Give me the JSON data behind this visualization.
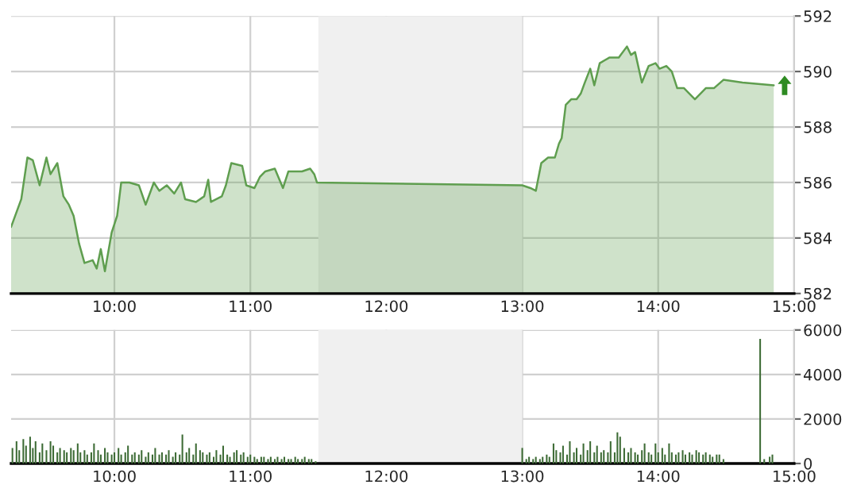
{
  "chart_data": [
    {
      "type": "area",
      "xlim": [
        9.24,
        15
      ],
      "ylim": [
        582,
        592
      ],
      "yticks": [
        582,
        584,
        586,
        588,
        590,
        592
      ],
      "xticks": [
        {
          "value": 10,
          "label": "10:00"
        },
        {
          "value": 11,
          "label": "11:00"
        },
        {
          "value": 12,
          "label": "12:00"
        },
        {
          "value": 13,
          "label": "13:00"
        },
        {
          "value": 14,
          "label": "14:00"
        },
        {
          "value": 15,
          "label": "15:00"
        }
      ],
      "grid": true,
      "bands": [
        {
          "axis": "x",
          "from": 11.5,
          "to": 13,
          "color": "#f0f0f0"
        }
      ],
      "series": [
        {
          "color": "#5f9e4f",
          "x": [
            9.24,
            9.315,
            9.36,
            9.4,
            9.45,
            9.5,
            9.53,
            9.58,
            9.625,
            9.665,
            9.7,
            9.74,
            9.78,
            9.84,
            9.87,
            9.9,
            9.93,
            9.98,
            10.02,
            10.05,
            10.11,
            10.18,
            10.23,
            10.29,
            10.33,
            10.385,
            10.44,
            10.49,
            10.52,
            10.6,
            10.66,
            10.69,
            10.71,
            10.79,
            10.82,
            10.86,
            10.94,
            10.97,
            11.03,
            11.07,
            11.11,
            11.18,
            11.24,
            11.28,
            11.38,
            11.44,
            11.47,
            11.49,
            13.0,
            13.06,
            13.1,
            13.14,
            13.19,
            13.24,
            13.27,
            13.29,
            13.32,
            13.36,
            13.4,
            13.43,
            13.46,
            13.5,
            13.53,
            13.57,
            13.64,
            13.71,
            13.77,
            13.8,
            13.83,
            13.88,
            13.93,
            13.98,
            14.01,
            14.06,
            14.1,
            14.14,
            14.19,
            14.23,
            14.27,
            14.35,
            14.41,
            14.48,
            14.62,
            14.85
          ],
          "values": [
            584.4,
            585.4,
            586.9,
            586.8,
            585.9,
            586.9,
            586.3,
            586.7,
            585.5,
            585.2,
            584.8,
            583.8,
            583.1,
            583.2,
            582.9,
            583.6,
            582.8,
            584.2,
            584.8,
            586.0,
            586.0,
            585.9,
            585.2,
            586.0,
            585.7,
            585.9,
            585.6,
            586.0,
            585.4,
            585.3,
            585.5,
            586.1,
            585.3,
            585.5,
            585.9,
            586.7,
            586.6,
            585.9,
            585.8,
            586.2,
            586.4,
            586.5,
            585.8,
            586.4,
            586.4,
            586.5,
            586.3,
            586.0,
            585.9,
            585.8,
            585.7,
            586.7,
            586.9,
            586.9,
            587.4,
            587.6,
            588.8,
            589.0,
            589.0,
            589.2,
            589.6,
            590.1,
            589.5,
            590.3,
            590.5,
            590.5,
            590.9,
            590.6,
            590.7,
            589.6,
            590.2,
            590.3,
            590.1,
            590.2,
            590.0,
            589.4,
            589.4,
            589.2,
            589.0,
            589.4,
            589.4,
            589.7,
            589.6,
            589.5
          ]
        }
      ]
    },
    {
      "type": "bar",
      "xlim": [
        9.24,
        15
      ],
      "ylim": [
        0,
        6000
      ],
      "yticks": [
        0,
        2000,
        4000,
        6000
      ],
      "xticks": [
        {
          "value": 10,
          "label": "10:00"
        },
        {
          "value": 11,
          "label": "11:00"
        },
        {
          "value": 12,
          "label": "12:00"
        },
        {
          "value": 13,
          "label": "13:00"
        },
        {
          "value": 14,
          "label": "14:00"
        },
        {
          "value": 15,
          "label": "15:00"
        }
      ],
      "grid": true,
      "bands": [
        {
          "axis": "x",
          "from": 11.5,
          "to": 13,
          "color": "#f0f0f0"
        }
      ],
      "series": [
        {
          "color": "#3d6b35",
          "x": [
            9.25,
            9.28,
            9.3,
            9.33,
            9.35,
            9.38,
            9.4,
            9.42,
            9.45,
            9.47,
            9.5,
            9.53,
            9.55,
            9.58,
            9.6,
            9.63,
            9.65,
            9.68,
            9.7,
            9.73,
            9.75,
            9.78,
            9.8,
            9.83,
            9.85,
            9.88,
            9.9,
            9.93,
            9.95,
            9.98,
            10.0,
            10.03,
            10.05,
            10.08,
            10.1,
            10.13,
            10.15,
            10.18,
            10.2,
            10.23,
            10.25,
            10.28,
            10.3,
            10.33,
            10.35,
            10.38,
            10.4,
            10.43,
            10.45,
            10.48,
            10.5,
            10.53,
            10.55,
            10.58,
            10.6,
            10.63,
            10.65,
            10.68,
            10.7,
            10.73,
            10.75,
            10.78,
            10.8,
            10.83,
            10.85,
            10.88,
            10.9,
            10.93,
            10.95,
            10.98,
            11.0,
            11.03,
            11.05,
            11.08,
            11.1,
            11.13,
            11.15,
            11.18,
            11.2,
            11.23,
            11.25,
            11.28,
            11.3,
            11.33,
            11.35,
            11.38,
            11.4,
            11.43,
            11.45,
            11.48,
            13.0,
            13.03,
            13.05,
            13.08,
            13.1,
            13.13,
            13.15,
            13.18,
            13.2,
            13.23,
            13.25,
            13.28,
            13.3,
            13.33,
            13.35,
            13.38,
            13.4,
            13.43,
            13.45,
            13.48,
            13.5,
            13.53,
            13.55,
            13.58,
            13.6,
            13.63,
            13.65,
            13.68,
            13.7,
            13.72,
            13.75,
            13.78,
            13.8,
            13.83,
            13.85,
            13.88,
            13.9,
            13.93,
            13.95,
            13.98,
            14.0,
            14.03,
            14.05,
            14.08,
            14.1,
            14.13,
            14.15,
            14.18,
            14.2,
            14.23,
            14.25,
            14.28,
            14.3,
            14.33,
            14.35,
            14.38,
            14.4,
            14.43,
            14.45,
            14.48,
            14.75,
            14.78,
            14.82,
            14.84
          ],
          "values": [
            700,
            1000,
            600,
            1100,
            800,
            1200,
            700,
            1000,
            500,
            900,
            600,
            1000,
            800,
            500,
            700,
            600,
            500,
            700,
            600,
            900,
            500,
            600,
            400,
            500,
            900,
            600,
            400,
            700,
            500,
            400,
            500,
            700,
            400,
            500,
            800,
            400,
            500,
            400,
            600,
            300,
            500,
            400,
            700,
            400,
            500,
            400,
            600,
            300,
            500,
            400,
            1300,
            500,
            700,
            400,
            900,
            600,
            500,
            400,
            500,
            300,
            600,
            400,
            800,
            400,
            300,
            500,
            600,
            400,
            500,
            300,
            400,
            300,
            200,
            300,
            300,
            200,
            300,
            200,
            300,
            200,
            300,
            200,
            200,
            300,
            200,
            200,
            300,
            200,
            200,
            100,
            700,
            200,
            300,
            200,
            300,
            200,
            300,
            400,
            300,
            900,
            600,
            500,
            800,
            400,
            1000,
            500,
            700,
            400,
            900,
            600,
            1000,
            500,
            800,
            500,
            600,
            500,
            1000,
            500,
            1400,
            1200,
            700,
            500,
            700,
            500,
            400,
            600,
            900,
            500,
            400,
            900,
            500,
            700,
            400,
            900,
            500,
            400,
            500,
            600,
            400,
            500,
            400,
            600,
            500,
            400,
            500,
            400,
            300,
            400,
            400,
            200,
            5600,
            200,
            300,
            400
          ]
        }
      ]
    }
  ]
}
